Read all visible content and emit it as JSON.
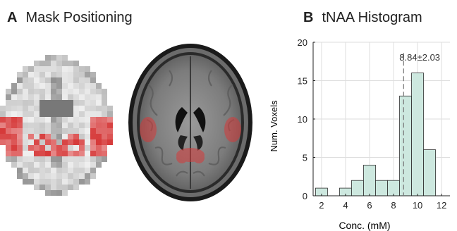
{
  "panels": {
    "a": {
      "letter": "A",
      "title": "Mask Positioning"
    },
    "b": {
      "letter": "B",
      "title": "tNAA Histogram"
    }
  },
  "colors": {
    "bar_fill": "#cde8df",
    "bar_stroke": "#2f2f2f",
    "mask_red": "#d63a3a",
    "mean_line": "#777777"
  },
  "chart_data": {
    "type": "bar",
    "title": "tNAA Histogram",
    "xlabel": "Conc. (mM)",
    "ylabel": "Num. Voxels",
    "xlim": [
      1.3,
      12.7
    ],
    "ylim": [
      0,
      20
    ],
    "xticks": [
      2,
      4,
      6,
      8,
      10,
      12
    ],
    "yticks": [
      0,
      5,
      10,
      15,
      20
    ],
    "bin_width": 1,
    "bin_centers": [
      2,
      3,
      4,
      5,
      6,
      7,
      8,
      9,
      10,
      11
    ],
    "values": [
      1,
      0,
      1,
      2,
      4,
      2,
      2,
      13,
      16,
      6
    ],
    "mean": 8.84,
    "annotation": "8.84±2.03",
    "grid": true
  }
}
